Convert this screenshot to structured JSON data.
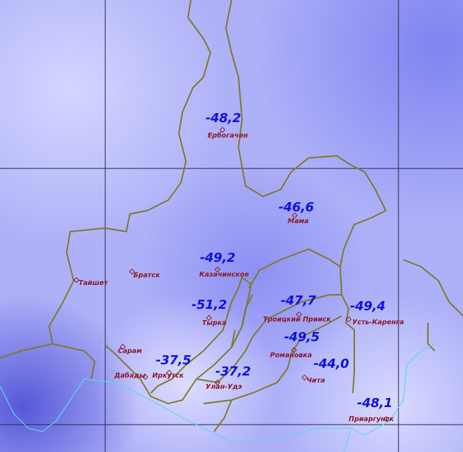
{
  "map": {
    "colors": {
      "low_value_dark": "#6f72ee",
      "high_value_light": "#d6d8ff",
      "grid": "#222244",
      "region_border": "#7d7a2a",
      "country_border": "#5fd4ef",
      "value_text": "#1010e0",
      "station_text": "#8b1a2a"
    },
    "stations": [
      {
        "name": "Ербогачен",
        "value": "-48,2"
      },
      {
        "name": "Мама",
        "value": "-46,6"
      },
      {
        "name": "Казачинское",
        "value": "-49,2"
      },
      {
        "name": "Братск"
      },
      {
        "name": "Тайшет"
      },
      {
        "name": "Тырка",
        "value": "-51,2"
      },
      {
        "name": "Сарам"
      },
      {
        "name": "Дабады"
      },
      {
        "name": "Иркутск",
        "value": "-37,5"
      },
      {
        "name": "Улан-Удэ",
        "value": "-37,2"
      },
      {
        "name": "Троицкий Прииск",
        "value": "-47,7"
      },
      {
        "name": "Усть-Каренга",
        "value": "-49,4"
      },
      {
        "name": "Романовка",
        "value": "-49,5"
      },
      {
        "name": "Чита",
        "value": "-44,0"
      },
      {
        "name": "Приаргунск",
        "value": "-48,1"
      }
    ]
  }
}
